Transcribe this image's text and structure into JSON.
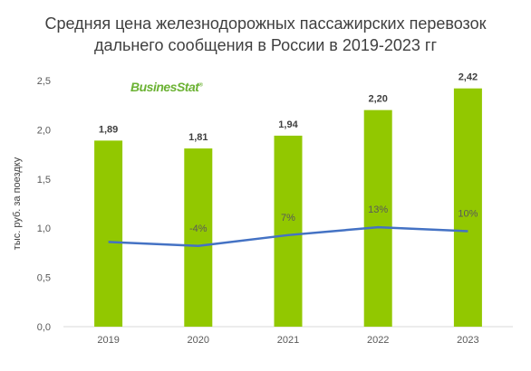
{
  "chart_data": {
    "type": "bar",
    "title_lines": [
      "Средняя цена железнодорожных пассажирских перевозок",
      "дальнего сообщения в России в  2019-2023 гг"
    ],
    "ylabel": "тыс. руб. за поездку",
    "categories": [
      "2019",
      "2020",
      "2021",
      "2022",
      "2023"
    ],
    "values": [
      1.89,
      1.81,
      1.94,
      2.2,
      2.42
    ],
    "value_labels": [
      "1,89",
      "1,81",
      "1,94",
      "2,20",
      "2,42"
    ],
    "growth_labels": [
      "",
      "-4%",
      "7%",
      "13%",
      "10%"
    ],
    "growth_line_values": [
      0.86,
      0.82,
      0.93,
      1.01,
      0.97
    ],
    "ylim": [
      0,
      2.5
    ],
    "yticks": [
      0,
      0.5,
      1.0,
      1.5,
      2.0,
      2.5
    ],
    "ytick_labels": [
      "0,0",
      "0,5",
      "1,0",
      "1,5",
      "2,0",
      "2,5"
    ],
    "bar_color": "#92c800",
    "line_color": "#4472c4",
    "grid": false,
    "logo": "BusinesStat"
  }
}
